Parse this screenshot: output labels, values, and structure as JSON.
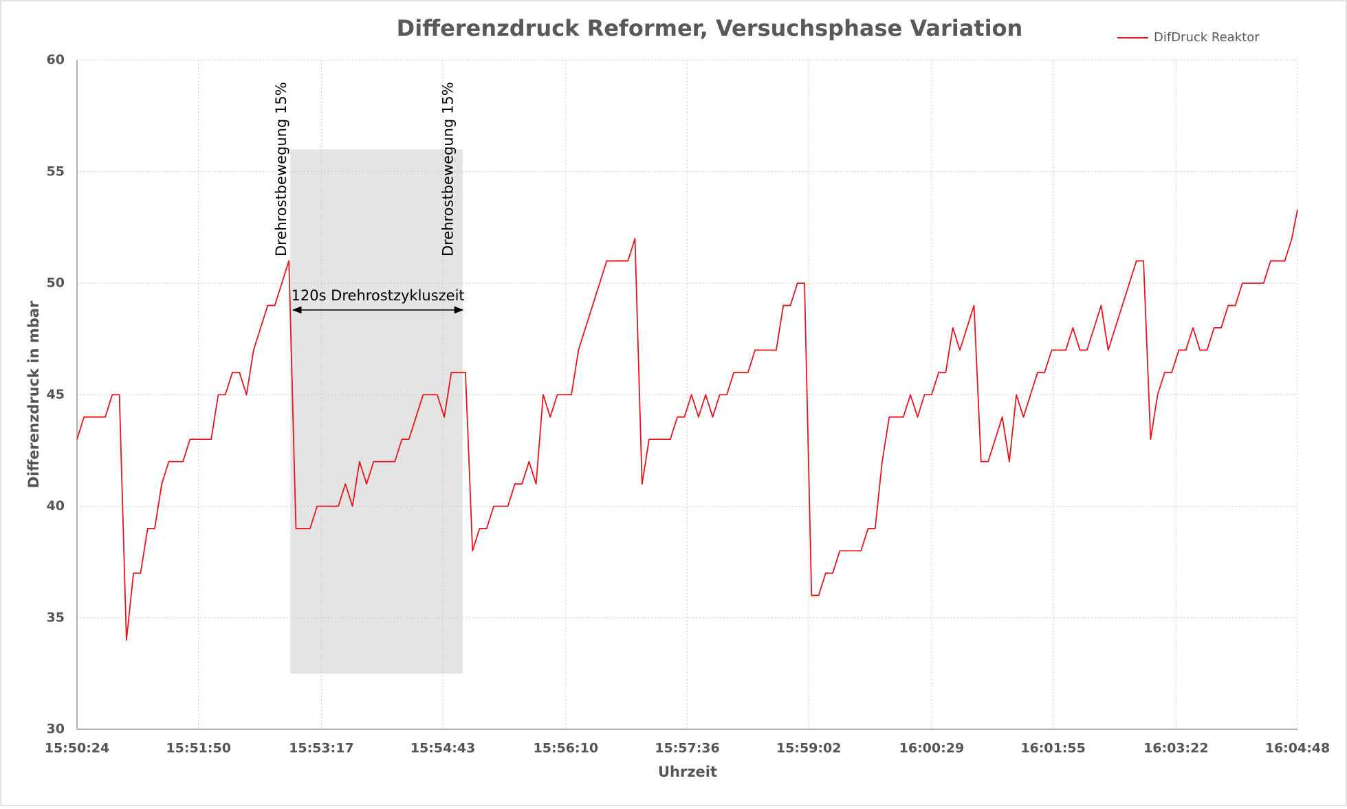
{
  "chart_data": {
    "type": "line",
    "title": "Differenzdruck Reformer, Versuchsphase Variation",
    "x_label": "Uhrzeit",
    "y_label": "Differenzdruck in mbar",
    "legend": "upper right",
    "grid": true,
    "xlim": [
      "15:50:24",
      "16:04:48"
    ],
    "xticks": [
      "15:50:24",
      "15:51:50",
      "15:53:17",
      "15:54:43",
      "15:56:10",
      "15:57:36",
      "15:59:02",
      "16:00:29",
      "16:01:55",
      "16:03:22",
      "16:04:48"
    ],
    "ylim": [
      30,
      60
    ],
    "yticks": [
      30,
      35,
      40,
      45,
      50,
      55,
      60
    ],
    "x": [
      "15:50:24",
      "15:50:29",
      "15:50:44",
      "15:50:49",
      "15:50:54",
      "15:50:59",
      "15:51:04",
      "15:51:09",
      "15:51:14",
      "15:51:19",
      "15:51:24",
      "15:51:29",
      "15:51:39",
      "15:51:44",
      "15:51:59",
      "15:52:04",
      "15:52:09",
      "15:52:14",
      "15:52:19",
      "15:52:24",
      "15:52:29",
      "15:52:34",
      "15:52:39",
      "15:52:44",
      "15:52:49",
      "15:52:54",
      "15:52:59",
      "15:53:09",
      "15:53:14",
      "15:53:29",
      "15:53:34",
      "15:53:39",
      "15:53:44",
      "15:53:49",
      "15:53:54",
      "15:54:09",
      "15:54:14",
      "15:54:19",
      "15:54:24",
      "15:54:29",
      "15:54:39",
      "15:54:44",
      "15:54:49",
      "15:54:59",
      "15:55:04",
      "15:55:09",
      "15:55:14",
      "15:55:19",
      "15:55:29",
      "15:55:34",
      "15:55:39",
      "15:55:44",
      "15:55:49",
      "15:55:54",
      "15:55:59",
      "15:56:04",
      "15:56:14",
      "15:56:19",
      "15:56:24",
      "15:56:29",
      "15:56:34",
      "15:56:39",
      "15:56:54",
      "15:56:59",
      "15:57:04",
      "15:57:09",
      "15:57:24",
      "15:57:29",
      "15:57:34",
      "15:57:39",
      "15:57:44",
      "15:57:49",
      "15:57:54",
      "15:57:59",
      "15:58:04",
      "15:58:09",
      "15:58:19",
      "15:58:24",
      "15:58:39",
      "15:58:44",
      "15:58:49",
      "15:58:54",
      "15:58:59",
      "15:59:04",
      "15:59:09",
      "15:59:14",
      "15:59:19",
      "15:59:24",
      "15:59:39",
      "15:59:44",
      "15:59:49",
      "15:59:54",
      "15:59:59",
      "16:00:09",
      "16:00:14",
      "16:00:19",
      "16:00:24",
      "16:00:29",
      "16:00:34",
      "16:00:39",
      "16:00:44",
      "16:00:49",
      "16:00:54",
      "16:00:59",
      "16:01:04",
      "16:01:09",
      "16:01:14",
      "16:01:19",
      "16:01:24",
      "16:01:29",
      "16:01:34",
      "16:01:39",
      "16:01:44",
      "16:01:49",
      "16:01:54",
      "16:02:04",
      "16:02:09",
      "16:02:14",
      "16:02:19",
      "16:02:24",
      "16:02:29",
      "16:02:34",
      "16:02:39",
      "16:02:44",
      "16:02:49",
      "16:02:54",
      "16:02:59",
      "16:03:04",
      "16:03:09",
      "16:03:14",
      "16:03:19",
      "16:03:24",
      "16:03:29",
      "16:03:34",
      "16:03:39",
      "16:03:44",
      "16:03:49",
      "16:03:54",
      "16:03:59",
      "16:04:04",
      "16:04:09",
      "16:04:24",
      "16:04:29",
      "16:04:39",
      "16:04:44",
      "16:04:48"
    ],
    "series": [
      {
        "name": "DifDruck Reaktor",
        "color": "#e8141c",
        "values": [
          43,
          44,
          44,
          45,
          45,
          34,
          37,
          37,
          39,
          39,
          41,
          42,
          42,
          43,
          43,
          45,
          45,
          46,
          46,
          45,
          47,
          48,
          49,
          49,
          50,
          51,
          39,
          39,
          40,
          40,
          41,
          40,
          42,
          41,
          42,
          42,
          43,
          43,
          44,
          45,
          45,
          44,
          46,
          46,
          38,
          39,
          39,
          40,
          40,
          41,
          41,
          42,
          41,
          45,
          44,
          45,
          45,
          47,
          48,
          49,
          50,
          51,
          51,
          52,
          41,
          43,
          43,
          44,
          44,
          45,
          44,
          45,
          44,
          45,
          45,
          46,
          46,
          47,
          47,
          49,
          49,
          50,
          50,
          36,
          36,
          37,
          37,
          38,
          38,
          39,
          39,
          42,
          44,
          44,
          45,
          44,
          45,
          45,
          46,
          46,
          48,
          47,
          48,
          49,
          42,
          42,
          43,
          44,
          42,
          45,
          44,
          45,
          46,
          46,
          47,
          47,
          48,
          47,
          47,
          48,
          49,
          47,
          48,
          49,
          50,
          51,
          51,
          43,
          45,
          46,
          46,
          47,
          47,
          48,
          47,
          47,
          48,
          48,
          49,
          49,
          50,
          50,
          51,
          51,
          52,
          53.3
        ]
      }
    ],
    "highlight": {
      "x": [
        "15:52:55",
        "15:54:57"
      ],
      "y": [
        32.5,
        56
      ]
    },
    "annotations": [
      {
        "text": "Drehrostbewegung 15%",
        "x": "15:52:52",
        "y": 51.2
      },
      {
        "text": "Drehrostbewegung 15%",
        "x": "15:54:50",
        "y": 51.2
      }
    ],
    "interval": {
      "text": "120s Drehrostzykluszeit",
      "x": [
        "15:52:57",
        "15:54:57"
      ],
      "y": 48.8
    }
  }
}
